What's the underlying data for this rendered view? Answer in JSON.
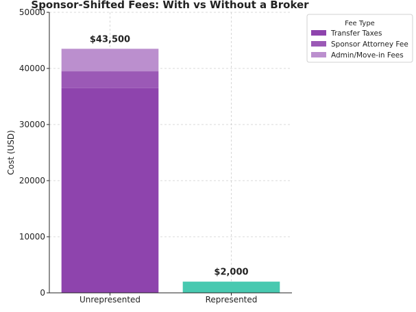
{
  "chart_data": {
    "type": "bar",
    "title": "Sponsor-Shifted Fees: With vs Without a Broker",
    "xlabel": "",
    "ylabel": "Cost (USD)",
    "ylim": [
      0,
      50000
    ],
    "yticks": [
      0,
      10000,
      20000,
      30000,
      40000,
      50000
    ],
    "grid": true,
    "categories": [
      "Unrepresented",
      "Represented"
    ],
    "series": [
      {
        "name": "Transfer Taxes",
        "values": [
          36500,
          0
        ],
        "color": "#8e44ad"
      },
      {
        "name": "Sponsor Attorney Fee",
        "values": [
          3000,
          0
        ],
        "color": "#9b59b6"
      },
      {
        "name": "Admin/Move-in Fees",
        "values": [
          4000,
          0
        ],
        "color": "#bb8fce"
      }
    ],
    "represented_bar": {
      "category": "Represented",
      "value": 2000,
      "color": "#48c9b0"
    },
    "data_labels": [
      "$43,500",
      "$2,000"
    ],
    "legend": {
      "title": "Fee Type",
      "placement": "top-right-outside",
      "entries": [
        "Transfer Taxes",
        "Sponsor Attorney Fee",
        "Admin/Move-in Fees"
      ]
    }
  }
}
